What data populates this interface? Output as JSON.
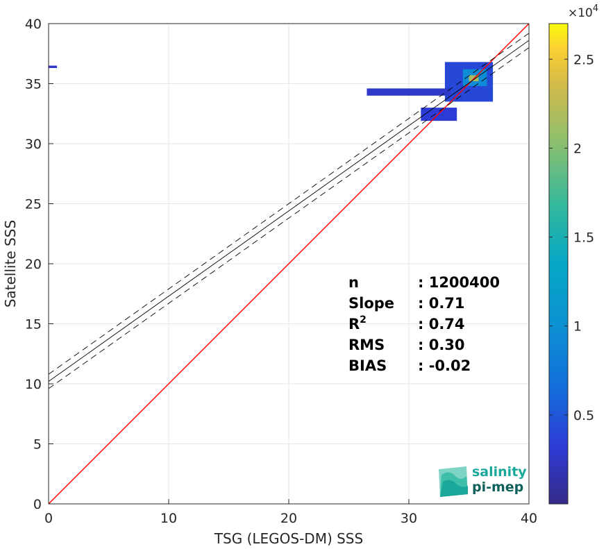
{
  "colors": {
    "identity_line": "#ff0000",
    "fit_line": "#000000",
    "grid": "#e6e6e6",
    "axis": "#262626",
    "logo_primary": "#1aa89a",
    "logo_secondary": "#0f5f5a"
  },
  "chart_data": {
    "type": "heatmap",
    "title": "",
    "xlabel": "TSG (LEGOS-DM) SSS",
    "ylabel": "Satellite SSS",
    "xlim": [
      0,
      40
    ],
    "ylim": [
      0,
      40
    ],
    "xticks": [
      0,
      10,
      20,
      30,
      40
    ],
    "yticks": [
      0,
      5,
      10,
      15,
      20,
      25,
      30,
      35,
      40
    ],
    "grid": true,
    "colormap": "parula",
    "colorbar": {
      "range": [
        0,
        27000
      ],
      "ticks": [
        5000,
        10000,
        15000,
        20000,
        25000
      ],
      "tick_labels": [
        "0.5",
        "1",
        "1.5",
        "2",
        "2.5"
      ],
      "exponent_label": "×10",
      "exponent_power": "4"
    },
    "identity_line": {
      "x": [
        0,
        40
      ],
      "y": [
        0,
        40
      ]
    },
    "fit_line": {
      "slope": 0.71,
      "intercept": 10.2,
      "x": [
        0,
        40
      ]
    },
    "confidence_band": {
      "offset": 0.6
    },
    "density_clusters": [
      {
        "x": [
          33.0,
          37.0
        ],
        "y": [
          33.5,
          36.8
        ],
        "level": 0.15
      },
      {
        "x": [
          26.5,
          33.5
        ],
        "y": [
          34.0,
          34.6
        ],
        "level": 0.1
      },
      {
        "x": [
          31.0,
          34.0
        ],
        "y": [
          31.9,
          33.0
        ],
        "level": 0.12
      },
      {
        "x": [
          34.5,
          36.5
        ],
        "y": [
          34.8,
          36.2
        ],
        "level": 0.35
      },
      {
        "x": [
          35.0,
          35.8
        ],
        "y": [
          35.2,
          35.7
        ],
        "level": 0.8
      },
      {
        "x": [
          0.0,
          0.7
        ],
        "y": [
          36.3,
          36.5
        ],
        "level": 0.1
      }
    ],
    "stats": [
      {
        "label": "n",
        "sep": ":",
        "value": "1200400"
      },
      {
        "label": "Slope",
        "sep": ":",
        "value": "0.71"
      },
      {
        "label": "R",
        "sup": "2",
        "sep": ":",
        "value": "0.74"
      },
      {
        "label": "RMS",
        "sep": ":",
        "value": "0.30"
      },
      {
        "label": "BIAS",
        "sep": ":",
        "value": "-0.02"
      }
    ]
  },
  "logo": {
    "line1": "salinity",
    "line2": "pi-mep"
  }
}
